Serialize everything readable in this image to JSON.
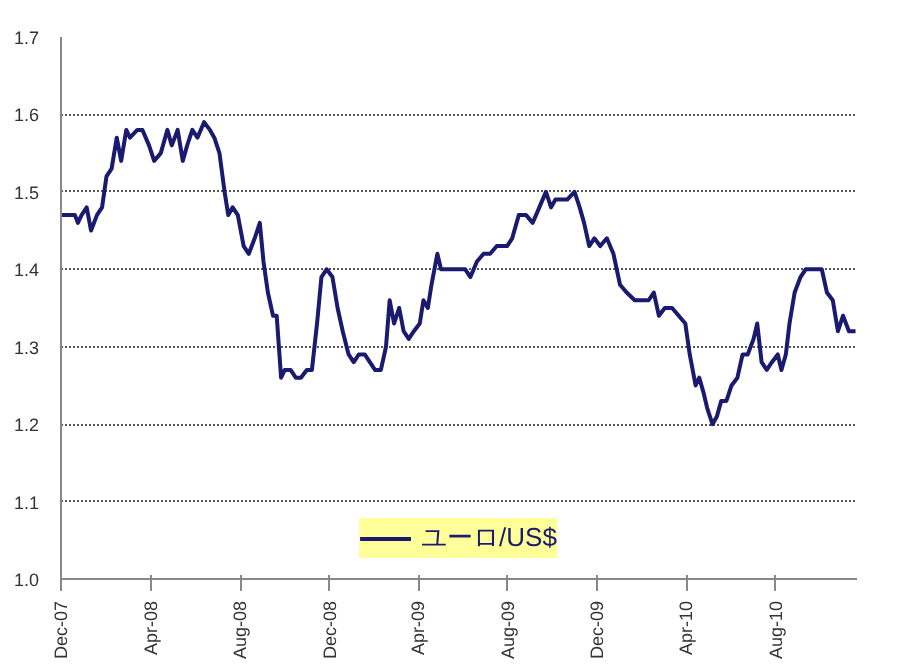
{
  "chart_data": {
    "type": "line",
    "x": [
      "2007-12-01",
      "2007-12-13",
      "2007-12-20",
      "2007-12-24",
      "2007-12-29",
      "2008-01-05",
      "2008-01-11",
      "2008-01-19",
      "2008-01-26",
      "2008-02-01",
      "2008-02-08",
      "2008-02-15",
      "2008-02-21",
      "2008-02-28",
      "2008-03-04",
      "2008-03-14",
      "2008-03-21",
      "2008-03-30",
      "2008-04-06",
      "2008-04-15",
      "2008-04-24",
      "2008-04-30",
      "2008-05-08",
      "2008-05-15",
      "2008-05-21",
      "2008-05-28",
      "2008-06-04",
      "2008-06-13",
      "2008-06-21",
      "2008-06-27",
      "2008-07-04",
      "2008-07-11",
      "2008-07-16",
      "2008-07-22",
      "2008-07-29",
      "2008-08-06",
      "2008-08-13",
      "2008-08-21",
      "2008-08-28",
      "2008-09-02",
      "2008-09-08",
      "2008-09-15",
      "2008-09-20",
      "2008-09-26",
      "2008-10-01",
      "2008-10-09",
      "2008-10-16",
      "2008-10-23",
      "2008-10-31",
      "2008-11-07",
      "2008-11-14",
      "2008-11-20",
      "2008-11-27",
      "2008-12-05",
      "2008-12-12",
      "2008-12-19",
      "2008-12-27",
      "2009-01-03",
      "2009-01-10",
      "2009-01-18",
      "2009-01-25",
      "2009-02-01",
      "2009-02-09",
      "2009-02-16",
      "2009-02-21",
      "2009-02-27",
      "2009-03-06",
      "2009-03-12",
      "2009-03-19",
      "2009-03-26",
      "2009-04-03",
      "2009-04-08",
      "2009-04-14",
      "2009-04-19",
      "2009-04-27",
      "2009-05-02",
      "2009-05-09",
      "2009-05-19",
      "2009-05-28",
      "2009-06-04",
      "2009-06-11",
      "2009-06-20",
      "2009-06-29",
      "2009-07-08",
      "2009-07-17",
      "2009-07-31",
      "2009-08-07",
      "2009-08-16",
      "2009-08-26",
      "2009-09-04",
      "2009-09-13",
      "2009-09-22",
      "2009-09-29",
      "2009-10-05",
      "2009-10-12",
      "2009-10-21",
      "2009-10-31",
      "2009-11-07",
      "2009-11-13",
      "2009-11-20",
      "2009-11-27",
      "2009-12-05",
      "2009-12-14",
      "2009-12-23",
      "2010-01-01",
      "2010-01-10",
      "2010-01-21",
      "2010-01-30",
      "2010-02-09",
      "2010-02-16",
      "2010-02-23",
      "2010-03-03",
      "2010-03-13",
      "2010-03-22",
      "2010-03-31",
      "2010-04-06",
      "2010-04-14",
      "2010-04-19",
      "2010-04-25",
      "2010-04-30",
      "2010-05-07",
      "2010-05-13",
      "2010-05-19",
      "2010-05-26",
      "2010-06-02",
      "2010-06-10",
      "2010-06-17",
      "2010-06-24",
      "2010-07-02",
      "2010-07-07",
      "2010-07-13",
      "2010-07-20",
      "2010-07-27",
      "2010-08-04",
      "2010-08-09",
      "2010-08-15",
      "2010-08-20",
      "2010-08-27",
      "2010-09-04",
      "2010-09-11",
      "2010-09-18",
      "2010-09-26",
      "2010-10-03",
      "2010-10-10",
      "2010-10-18",
      "2010-10-25",
      "2010-11-01",
      "2010-11-09",
      "2010-11-18"
    ],
    "series": [
      {
        "name": "ユーロ/US$",
        "color": "#1a1a6e",
        "values": [
          1.47,
          1.47,
          1.47,
          1.46,
          1.47,
          1.48,
          1.45,
          1.47,
          1.48,
          1.52,
          1.53,
          1.57,
          1.54,
          1.58,
          1.57,
          1.58,
          1.58,
          1.56,
          1.54,
          1.55,
          1.58,
          1.56,
          1.58,
          1.54,
          1.56,
          1.58,
          1.57,
          1.59,
          1.58,
          1.57,
          1.55,
          1.5,
          1.47,
          1.48,
          1.47,
          1.43,
          1.42,
          1.44,
          1.46,
          1.41,
          1.37,
          1.34,
          1.34,
          1.26,
          1.27,
          1.27,
          1.26,
          1.26,
          1.27,
          1.27,
          1.33,
          1.39,
          1.4,
          1.39,
          1.35,
          1.32,
          1.29,
          1.28,
          1.29,
          1.29,
          1.28,
          1.27,
          1.27,
          1.3,
          1.36,
          1.33,
          1.35,
          1.32,
          1.31,
          1.32,
          1.33,
          1.36,
          1.35,
          1.38,
          1.42,
          1.4,
          1.4,
          1.4,
          1.4,
          1.4,
          1.39,
          1.41,
          1.42,
          1.42,
          1.43,
          1.43,
          1.44,
          1.47,
          1.47,
          1.46,
          1.48,
          1.5,
          1.48,
          1.49,
          1.49,
          1.49,
          1.5,
          1.48,
          1.46,
          1.43,
          1.44,
          1.43,
          1.44,
          1.42,
          1.38,
          1.37,
          1.36,
          1.36,
          1.36,
          1.37,
          1.34,
          1.35,
          1.35,
          1.34,
          1.33,
          1.29,
          1.25,
          1.26,
          1.24,
          1.22,
          1.2,
          1.21,
          1.23,
          1.23,
          1.25,
          1.26,
          1.29,
          1.29,
          1.31,
          1.33,
          1.28,
          1.27,
          1.28,
          1.29,
          1.27,
          1.29,
          1.33,
          1.37,
          1.39,
          1.4,
          1.4,
          1.4,
          1.4,
          1.37,
          1.36,
          1.32,
          1.34,
          1.32,
          1.32
        ]
      }
    ],
    "xlim": [
      "2007-12-01",
      "2010-11-20"
    ],
    "xticks": [
      {
        "value": "2007-12-01",
        "label": "Dec-07"
      },
      {
        "value": "2008-04-01",
        "label": "Apr-08"
      },
      {
        "value": "2008-08-01",
        "label": "Aug-08"
      },
      {
        "value": "2008-12-01",
        "label": "Dec-08"
      },
      {
        "value": "2009-04-01",
        "label": "Apr-09"
      },
      {
        "value": "2009-08-01",
        "label": "Aug-09"
      },
      {
        "value": "2009-12-01",
        "label": "Dec-09"
      },
      {
        "value": "2010-04-01",
        "label": "Apr-10"
      },
      {
        "value": "2010-08-01",
        "label": "Aug-10"
      }
    ],
    "ylim": [
      1.0,
      1.7
    ],
    "yticks": [
      {
        "value": 1.0,
        "label": "1.0"
      },
      {
        "value": 1.1,
        "label": "1.1"
      },
      {
        "value": 1.2,
        "label": "1.2"
      },
      {
        "value": 1.3,
        "label": "1.3"
      },
      {
        "value": 1.4,
        "label": "1.4"
      },
      {
        "value": 1.5,
        "label": "1.5"
      },
      {
        "value": 1.6,
        "label": "1.6"
      },
      {
        "value": 1.7,
        "label": "1.7"
      }
    ],
    "grid": "y",
    "legend": "bottom",
    "marker": "none",
    "line_style": "solid"
  }
}
